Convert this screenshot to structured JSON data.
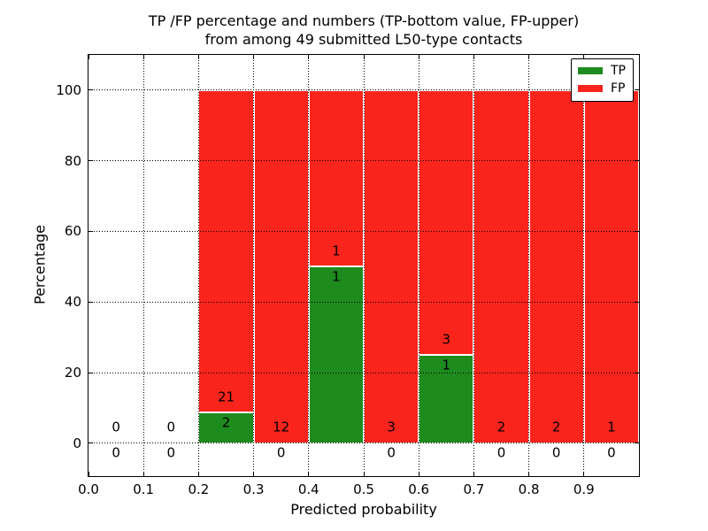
{
  "chart_data": {
    "type": "bar",
    "stacked": true,
    "title": "TP /FP percentage and numbers (TP-bottom value, FP-upper)\nfrom among 49 submitted L50-type contacts",
    "title_line1": "TP /FP percentage and numbers (TP-bottom value, FP-upper)",
    "title_line2": "from among 49 submitted L50-type contacts",
    "xlabel": "Predicted probability",
    "ylabel": "Percentage",
    "xlim": [
      0.0,
      1.0
    ],
    "ylim": [
      -9.3,
      110
    ],
    "xtick_labels": [
      "0.0",
      "0.1",
      "0.2",
      "0.3",
      "0.4",
      "0.5",
      "0.6",
      "0.7",
      "0.8",
      "0.9"
    ],
    "yticks": [
      0,
      20,
      40,
      60,
      80,
      100
    ],
    "grid": true,
    "grid_style": "dotted",
    "annotation_rule": "FP count printed above top of TP bar, TP count printed below it",
    "legend": {
      "position": "upper right",
      "entries": [
        {
          "label": "TP",
          "color": "#1e8b1e"
        },
        {
          "label": "FP",
          "color": "#f9241c"
        }
      ]
    },
    "bins": [
      {
        "x_range": [
          0.0,
          0.1
        ],
        "tp_count": 0,
        "fp_count": 0,
        "tp_pct": 0,
        "fp_pct": 0
      },
      {
        "x_range": [
          0.1,
          0.2
        ],
        "tp_count": 0,
        "fp_count": 0,
        "tp_pct": 0,
        "fp_pct": 0
      },
      {
        "x_range": [
          0.2,
          0.3
        ],
        "tp_count": 2,
        "fp_count": 21,
        "tp_pct": 8.7,
        "fp_pct": 91.3
      },
      {
        "x_range": [
          0.3,
          0.4
        ],
        "tp_count": 0,
        "fp_count": 12,
        "tp_pct": 0,
        "fp_pct": 100
      },
      {
        "x_range": [
          0.4,
          0.5
        ],
        "tp_count": 1,
        "fp_count": 1,
        "tp_pct": 50,
        "fp_pct": 50
      },
      {
        "x_range": [
          0.5,
          0.6
        ],
        "tp_count": 0,
        "fp_count": 3,
        "tp_pct": 0,
        "fp_pct": 100
      },
      {
        "x_range": [
          0.6,
          0.7
        ],
        "tp_count": 1,
        "fp_count": 3,
        "tp_pct": 25,
        "fp_pct": 75
      },
      {
        "x_range": [
          0.7,
          0.8
        ],
        "tp_count": 0,
        "fp_count": 2,
        "tp_pct": 0,
        "fp_pct": 100
      },
      {
        "x_range": [
          0.8,
          0.9
        ],
        "tp_count": 0,
        "fp_count": 2,
        "tp_pct": 0,
        "fp_pct": 100
      },
      {
        "x_range": [
          0.9,
          1.0
        ],
        "tp_count": 0,
        "fp_count": 1,
        "tp_pct": 0,
        "fp_pct": 100
      }
    ]
  },
  "colors": {
    "tp_green": "#1e8b1e",
    "fp_red": "#f9241c",
    "background": "#ffffff",
    "text": "#000000",
    "grid": "#000000",
    "spine": "#000000",
    "bar_edge": "#ffffff"
  }
}
